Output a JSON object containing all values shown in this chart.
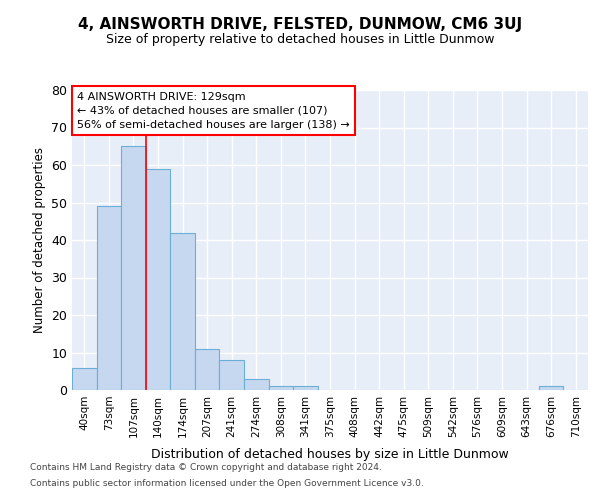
{
  "title": "4, AINSWORTH DRIVE, FELSTED, DUNMOW, CM6 3UJ",
  "subtitle": "Size of property relative to detached houses in Little Dunmow",
  "xlabel": "Distribution of detached houses by size in Little Dunmow",
  "ylabel": "Number of detached properties",
  "bar_labels": [
    "40sqm",
    "73sqm",
    "107sqm",
    "140sqm",
    "174sqm",
    "207sqm",
    "241sqm",
    "274sqm",
    "308sqm",
    "341sqm",
    "375sqm",
    "408sqm",
    "442sqm",
    "475sqm",
    "509sqm",
    "542sqm",
    "576sqm",
    "609sqm",
    "643sqm",
    "676sqm",
    "710sqm"
  ],
  "bar_values": [
    6,
    49,
    65,
    59,
    42,
    11,
    8,
    3,
    1,
    1,
    0,
    0,
    0,
    0,
    0,
    0,
    0,
    0,
    0,
    1,
    0
  ],
  "bar_color": "#c5d8f0",
  "bar_edge_color": "#6baed6",
  "background_color": "#e8eef8",
  "grid_color": "#ffffff",
  "ylim": [
    0,
    80
  ],
  "yticks": [
    0,
    10,
    20,
    30,
    40,
    50,
    60,
    70,
    80
  ],
  "annotation_line1": "4 AINSWORTH DRIVE: 129sqm",
  "annotation_line2": "← 43% of detached houses are smaller (107)",
  "annotation_line3": "56% of semi-detached houses are larger (138) →",
  "vline_index": 2,
  "footer_line1": "Contains HM Land Registry data © Crown copyright and database right 2024.",
  "footer_line2": "Contains public sector information licensed under the Open Government Licence v3.0."
}
